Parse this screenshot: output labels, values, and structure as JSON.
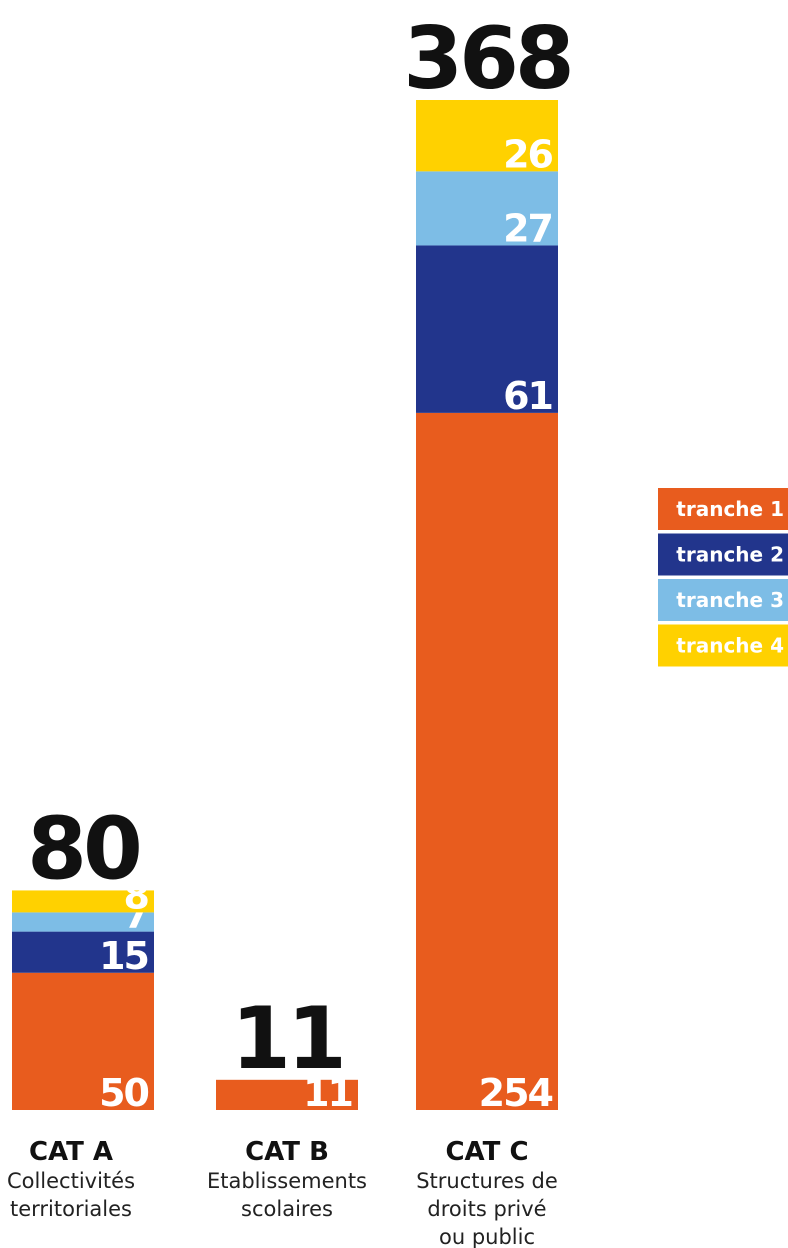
{
  "chart_data": {
    "type": "stacked-bar",
    "categories": [
      "CAT A",
      "CAT B",
      "CAT C"
    ],
    "sublabels": [
      [
        "Collectivités",
        "territoriales"
      ],
      [
        "Etablissements",
        "scolaires"
      ],
      [
        "Structures de",
        "droits privé",
        "ou public"
      ]
    ],
    "totals": [
      80,
      11,
      368
    ],
    "series": [
      {
        "name": "tranche 1",
        "color": "#e85c1e",
        "values": [
          50,
          11,
          254
        ]
      },
      {
        "name": "tranche 2",
        "color": "#22358c",
        "values": [
          15,
          null,
          61
        ]
      },
      {
        "name": "tranche 3",
        "color": "#7dbde6",
        "values": [
          7,
          null,
          27
        ]
      },
      {
        "name": "tranche 4",
        "color": "#ffd100",
        "values": [
          8,
          null,
          26
        ]
      }
    ],
    "legend": "right"
  }
}
